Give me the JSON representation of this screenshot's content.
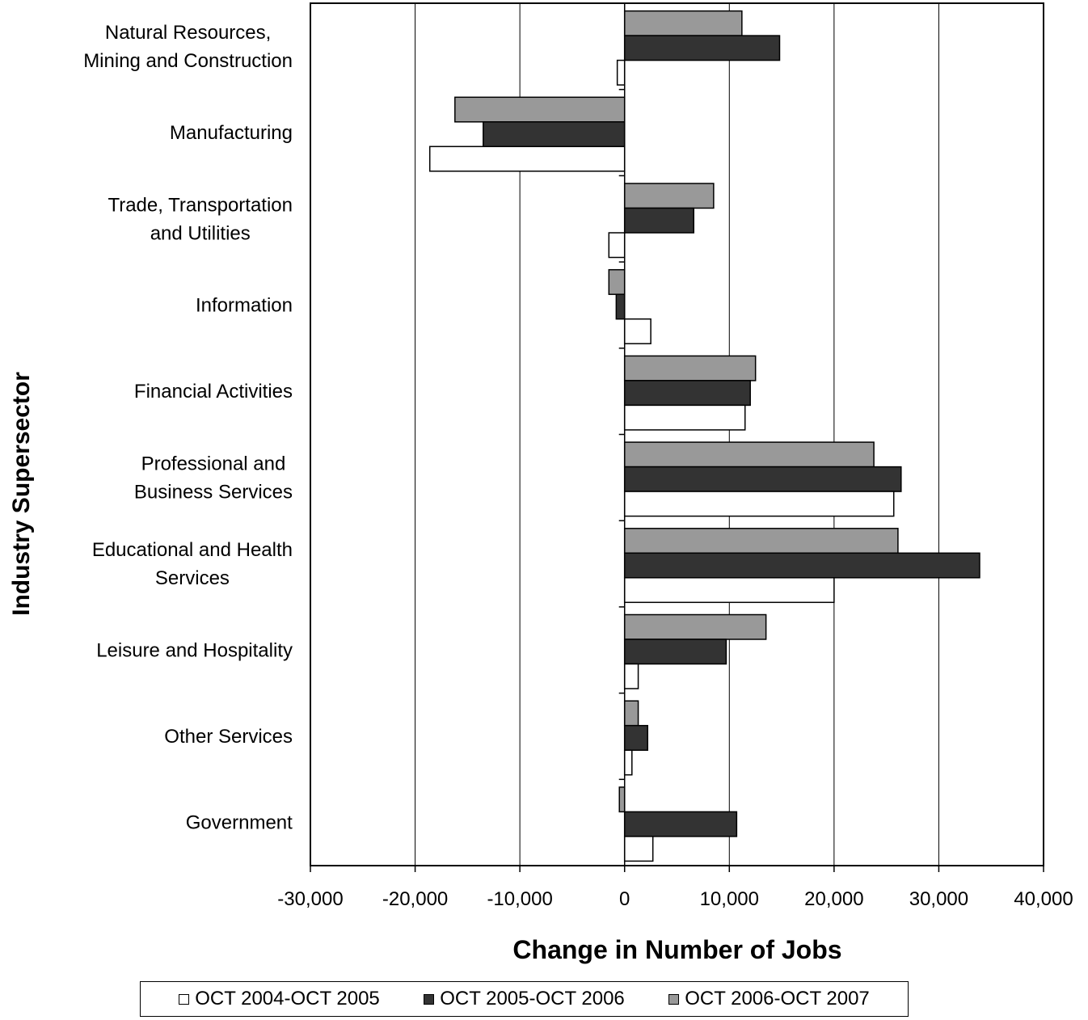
{
  "chart_data": {
    "type": "bar",
    "orientation": "horizontal",
    "categories": [
      [
        "Natural Resources,",
        "Mining and Construction"
      ],
      [
        "Manufacturing"
      ],
      [
        "Trade, Transportation",
        "and Utilities"
      ],
      [
        "Information"
      ],
      [
        "Financial Activities"
      ],
      [
        "Professional and",
        "Business Services"
      ],
      [
        "Educational and Health",
        "Services"
      ],
      [
        "Leisure and Hospitality"
      ],
      [
        "Other Services"
      ],
      [
        "Government"
      ]
    ],
    "series": [
      {
        "name": "OCT 2004-OCT 2005",
        "color": "#ffffff",
        "values": [
          -700,
          -18600,
          -1500,
          2500,
          11500,
          25700,
          20000,
          1300,
          700,
          2700
        ]
      },
      {
        "name": "OCT 2005-OCT 2006",
        "color": "#333333",
        "values": [
          14800,
          -13500,
          6600,
          -800,
          12000,
          26400,
          33900,
          9700,
          2200,
          10700
        ]
      },
      {
        "name": "OCT 2006-OCT 2007",
        "color": "#999999",
        "values": [
          11200,
          -16200,
          8500,
          -1500,
          12500,
          23800,
          26100,
          13500,
          1300,
          -500
        ]
      }
    ],
    "xlabel": "Change in Number of Jobs",
    "ylabel": "Industry Supersector",
    "xlim": [
      -30000,
      40000
    ],
    "xticks": [
      "-30,000",
      "-20,000",
      "-10,000",
      "0",
      "10,000",
      "20,000",
      "30,000",
      "40,000"
    ],
    "xtick_values": [
      -30000,
      -20000,
      -10000,
      0,
      10000,
      20000,
      30000,
      40000
    ],
    "grid": "vertical",
    "legend_position": "bottom"
  }
}
